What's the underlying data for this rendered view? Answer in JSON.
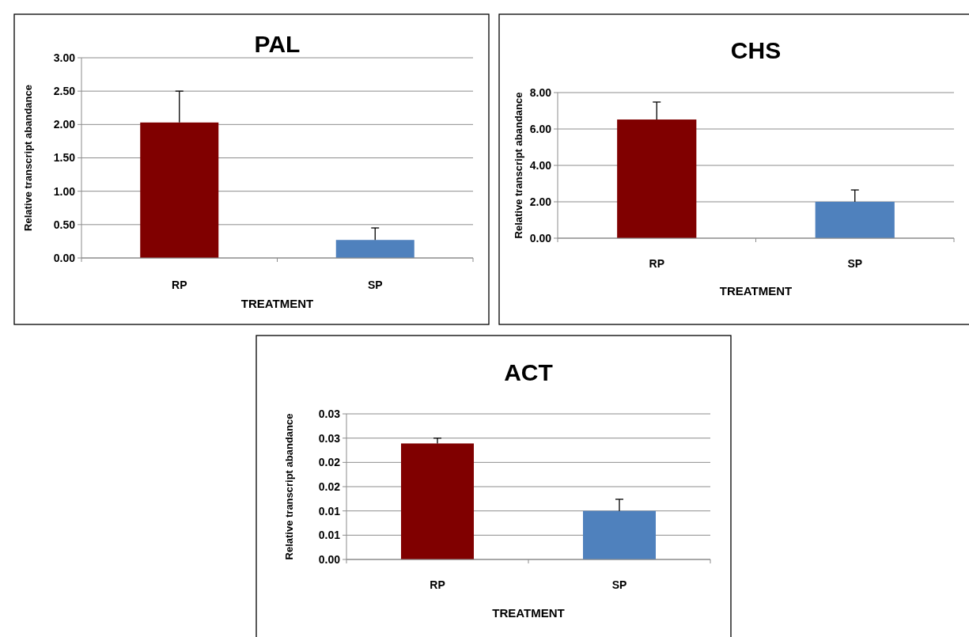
{
  "chart_data": [
    {
      "type": "bar",
      "title": "PAL",
      "xlabel": "TREATMENT",
      "ylabel": "Relative transcript abandance",
      "categories": [
        "RP",
        "SP"
      ],
      "values": [
        2.03,
        0.27
      ],
      "colors": [
        "#800000",
        "#4f81bd"
      ],
      "errors": [
        [
          2.03,
          2.5
        ],
        [
          0.27,
          0.45
        ]
      ],
      "ylim": [
        0,
        3
      ],
      "yticks": [
        {
          "value": 0,
          "label": "0.00"
        },
        {
          "value": 0.5,
          "label": "0.50"
        },
        {
          "value": 1,
          "label": "1.00"
        },
        {
          "value": 1.5,
          "label": "1.50"
        },
        {
          "value": 2,
          "label": "2.00"
        },
        {
          "value": 2.5,
          "label": "2.50"
        },
        {
          "value": 3,
          "label": "3.00"
        }
      ],
      "grid": "y"
    },
    {
      "type": "bar",
      "title": "CHS",
      "xlabel": "TREATMENT",
      "ylabel": "Relative transcript abandance",
      "categories": [
        "RP",
        "SP"
      ],
      "values": [
        6.52,
        2.0
      ],
      "colors": [
        "#800000",
        "#4f81bd"
      ],
      "errors": [
        [
          6.52,
          7.48
        ],
        [
          2.0,
          2.65
        ]
      ],
      "ylim": [
        0,
        8
      ],
      "yticks": [
        {
          "value": 0,
          "label": "0.00"
        },
        {
          "value": 2,
          "label": "2.00"
        },
        {
          "value": 4,
          "label": "4.00"
        },
        {
          "value": 6,
          "label": "6.00"
        },
        {
          "value": 8,
          "label": "8.00"
        }
      ],
      "grid": "y"
    },
    {
      "type": "bar",
      "title": "ACT",
      "xlabel": "TREATMENT",
      "ylabel": "Relative transcript abandance",
      "categories": [
        "RP",
        "SP"
      ],
      "values": [
        0.0239,
        0.01
      ],
      "colors": [
        "#800000",
        "#4f81bd"
      ],
      "errors": [
        [
          0.0239,
          0.025
        ],
        [
          0.01,
          0.0124
        ]
      ],
      "ylim": [
        0,
        0.03
      ],
      "yticks": [
        {
          "value": 0,
          "label": "0.00"
        },
        {
          "value": 0.005,
          "label": "0.01"
        },
        {
          "value": 0.01,
          "label": "0.01"
        },
        {
          "value": 0.015,
          "label": "0.02"
        },
        {
          "value": 0.02,
          "label": "0.02"
        },
        {
          "value": 0.025,
          "label": "0.03"
        },
        {
          "value": 0.03,
          "label": "0.03"
        }
      ],
      "grid": "y"
    }
  ]
}
